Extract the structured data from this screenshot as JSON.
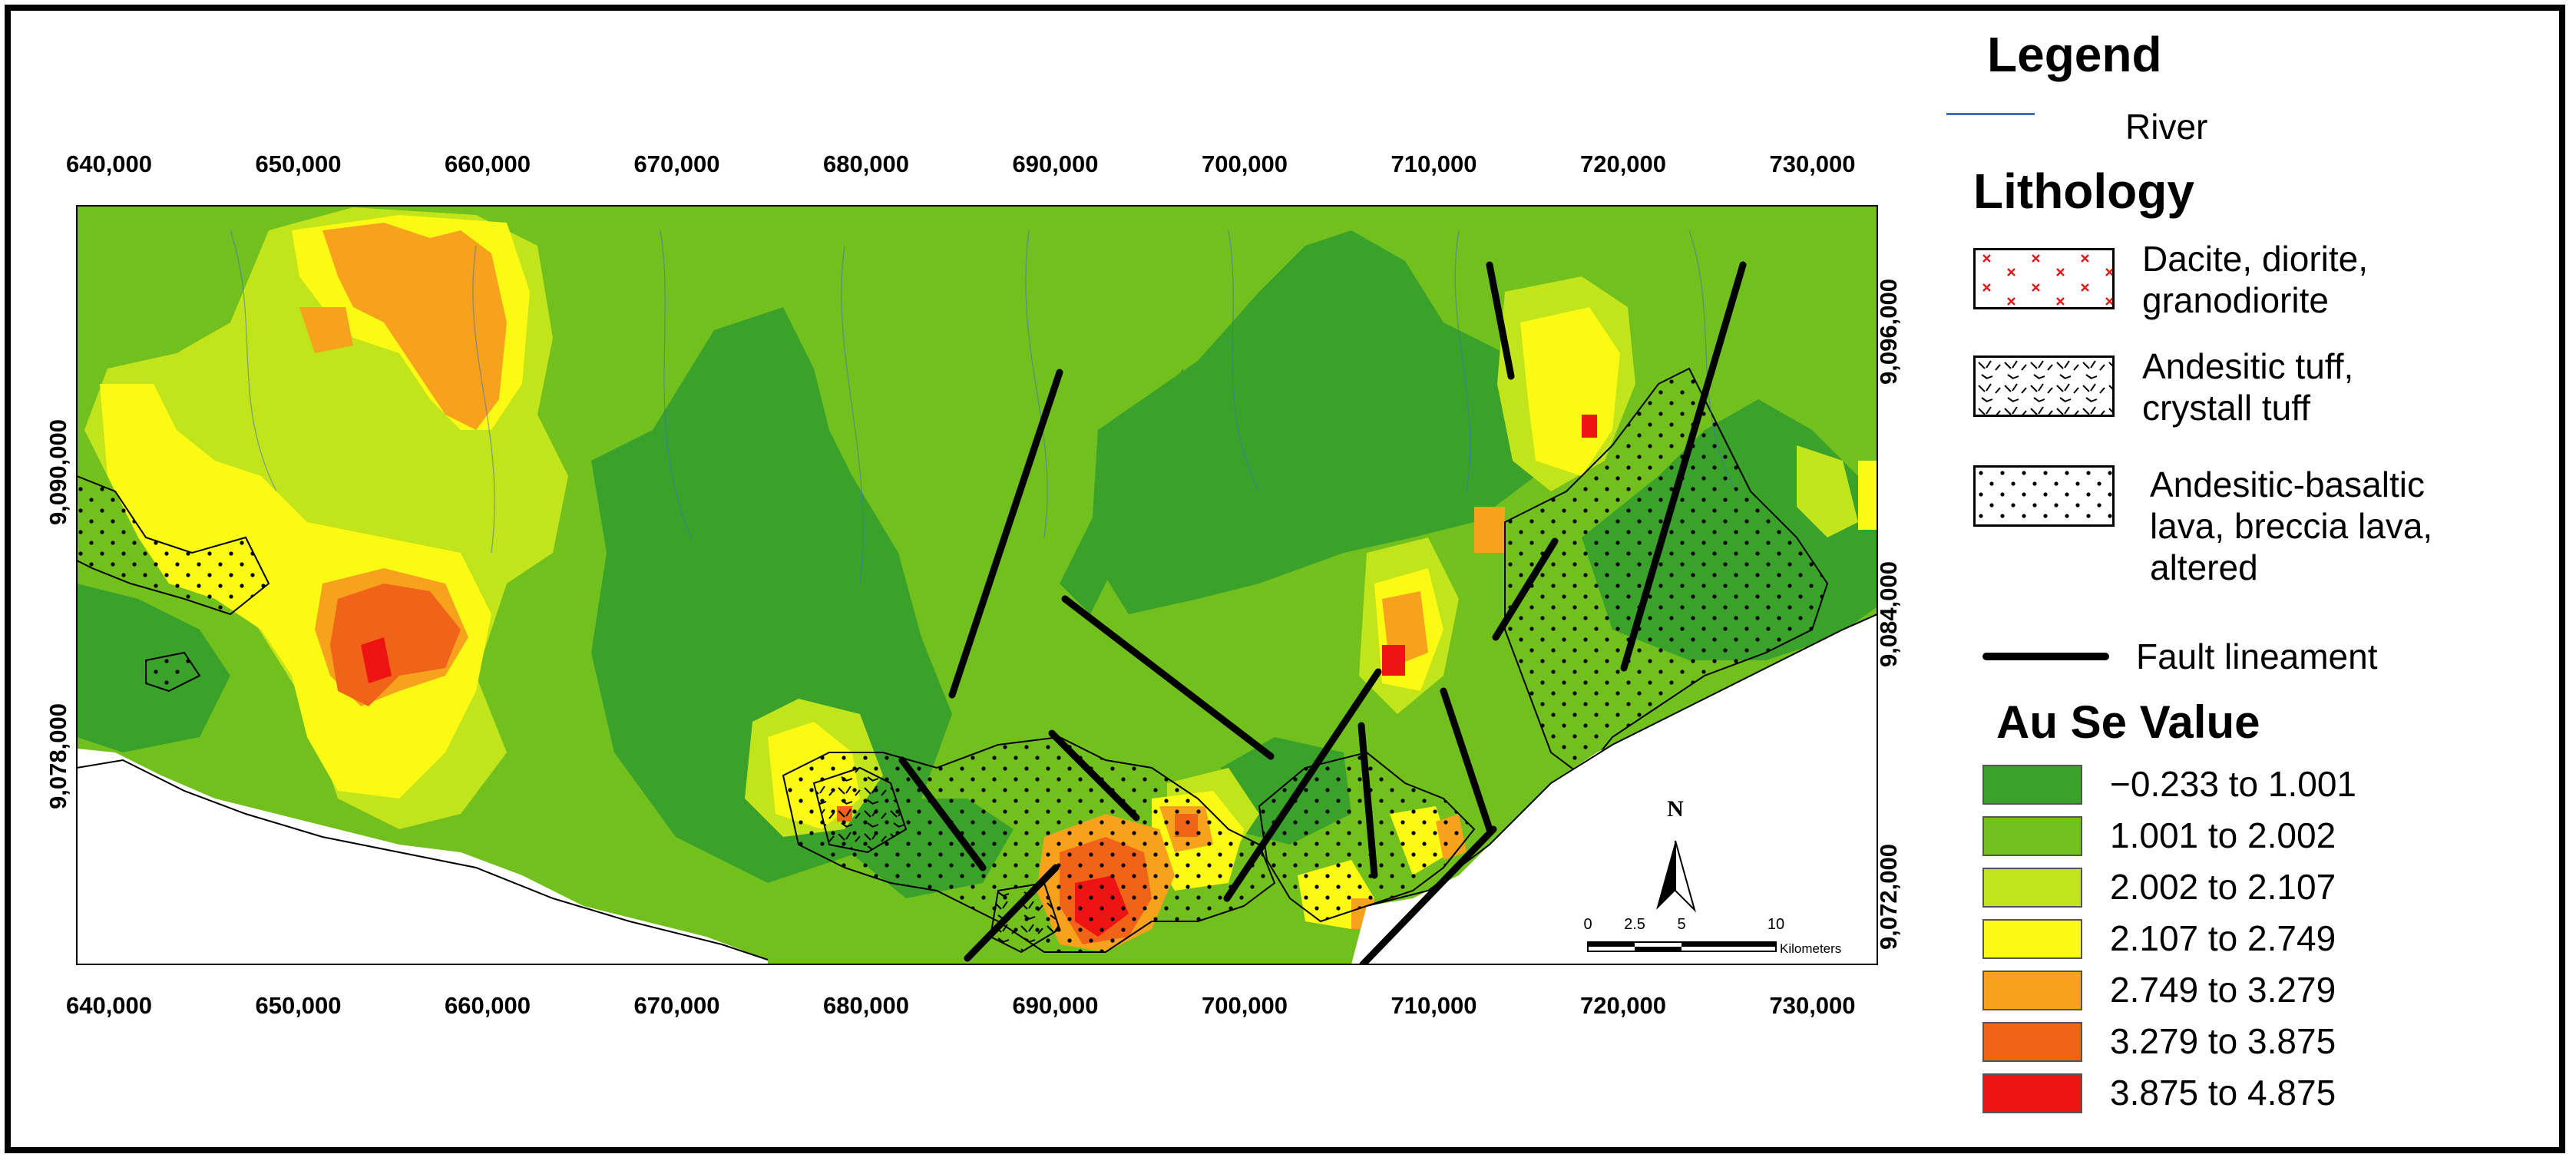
{
  "legend": {
    "title": "Legend",
    "river_label": "River",
    "river_color": "#3c6fc4",
    "lithology_title": "Lithology",
    "lithology": [
      {
        "lines": [
          "Dacite, diorite,",
          "granodiorite"
        ],
        "pattern": "red-x"
      },
      {
        "lines": [
          "Andesitic tuff,",
          "crystall tuff"
        ],
        "pattern": "tuff-dashes"
      },
      {
        "lines": [
          "Andesitic-basaltic",
          "lava, breccia lava,",
          "altered"
        ],
        "pattern": "dots"
      }
    ],
    "fault_label": "Fault lineament",
    "value_title": "Au Se Value",
    "classes": [
      {
        "label": "−0.233 to 1.001",
        "color": "#3aa22a"
      },
      {
        "label": "1.001 to 2.002",
        "color": "#72c01e"
      },
      {
        "label": "2.002 to 2.107",
        "color": "#c2e41a"
      },
      {
        "label": "2.107 to 2.749",
        "color": "#fafa14"
      },
      {
        "label": "2.749 to 3.279",
        "color": "#f6a21c"
      },
      {
        "label": "3.279 to 3.875",
        "color": "#f2631a"
      },
      {
        "label": "3.875 to 4.875",
        "color": "#ee1414"
      }
    ]
  },
  "axes": {
    "x_ticks": [
      "640,000",
      "650,000",
      "660,000",
      "670,000",
      "680,000",
      "690,000",
      "700,000",
      "710,000",
      "720,000",
      "730,000"
    ],
    "y_ticks_left": [
      "9,090,000",
      "9,078,000"
    ],
    "y_ticks_right": [
      "9,096,000",
      "9,084,000",
      "9,072,000"
    ]
  },
  "scale_bar": {
    "north_label": "N",
    "ticks": [
      "0",
      "2.5",
      "5",
      "10"
    ],
    "unit": "Kilometers"
  }
}
